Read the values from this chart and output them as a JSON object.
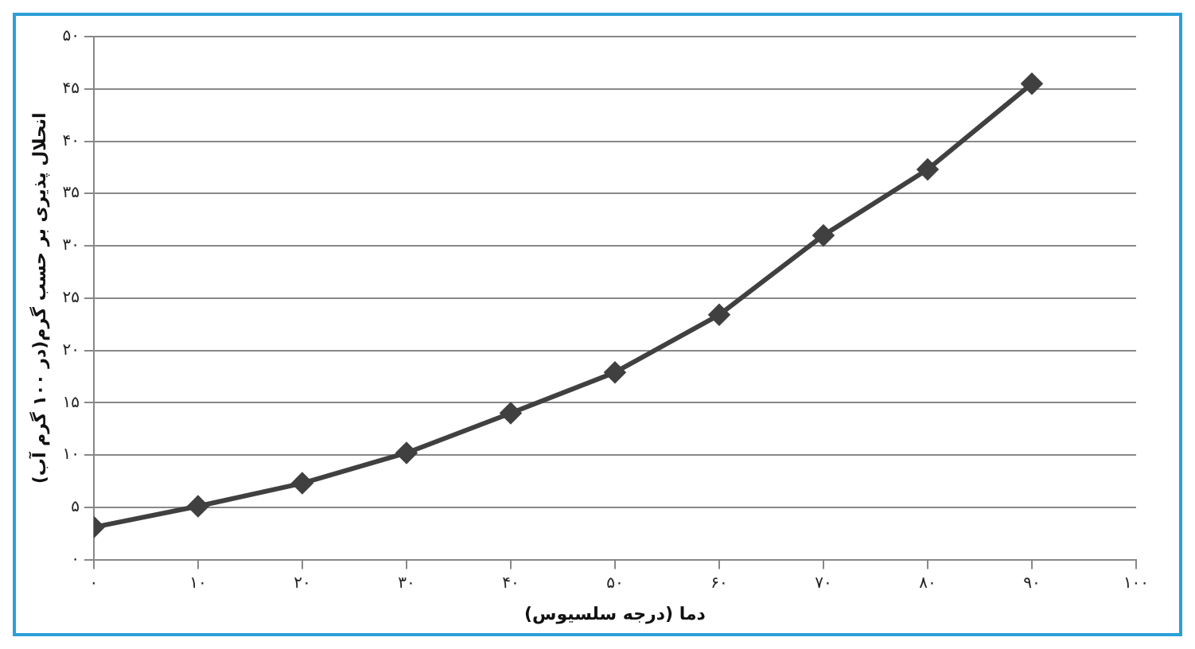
{
  "chart_data": {
    "type": "line",
    "xlabel": "دما (درجه سلسیوس)",
    "ylabel": "انحلال پذیری بر حسب گرم(در ۱۰۰ گرم آب)",
    "x": [
      0,
      10,
      20,
      30,
      40,
      50,
      60,
      70,
      80,
      90
    ],
    "series": [
      {
        "color": "#404040",
        "values": [
          3.1,
          5.1,
          7.3,
          10.2,
          14.0,
          17.9,
          23.4,
          31.0,
          37.3,
          45.5
        ]
      }
    ],
    "xlim": [
      0,
      100
    ],
    "xticks": [
      {
        "value": 0,
        "label": "۰"
      },
      {
        "value": 10,
        "label": "۱۰"
      },
      {
        "value": 20,
        "label": "۲۰"
      },
      {
        "value": 30,
        "label": "۳۰"
      },
      {
        "value": 40,
        "label": "۴۰"
      },
      {
        "value": 50,
        "label": "۵۰"
      },
      {
        "value": 60,
        "label": "۶۰"
      },
      {
        "value": 70,
        "label": "۷۰"
      },
      {
        "value": 80,
        "label": "۸۰"
      },
      {
        "value": 90,
        "label": "۹۰"
      },
      {
        "value": 100,
        "label": "۱۰۰"
      }
    ],
    "ylim": [
      0,
      50
    ],
    "yticks": [
      {
        "value": 0,
        "label": "۰"
      },
      {
        "value": 5,
        "label": "۵"
      },
      {
        "value": 10,
        "label": "۱۰"
      },
      {
        "value": 15,
        "label": "۱۵"
      },
      {
        "value": 20,
        "label": "۲۰"
      },
      {
        "value": 25,
        "label": "۲۵"
      },
      {
        "value": 30,
        "label": "۳۰"
      },
      {
        "value": 35,
        "label": "۳۵"
      },
      {
        "value": 40,
        "label": "۴۰"
      },
      {
        "value": 45,
        "label": "۴۵"
      },
      {
        "value": 50,
        "label": "۵۰"
      }
    ],
    "grid": "y",
    "marker": "diamond",
    "line_style": "solid",
    "legend": false
  }
}
